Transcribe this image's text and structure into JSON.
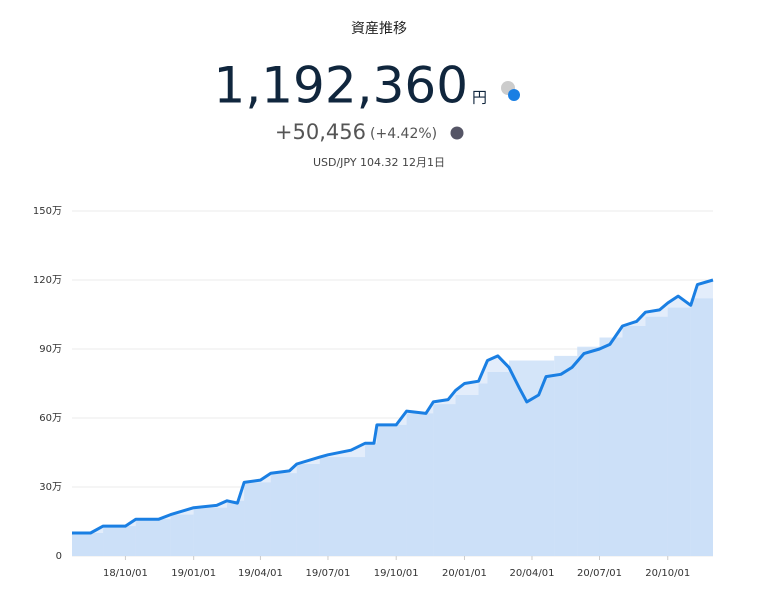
{
  "header": {
    "title": "資産推移",
    "total": "1,192,360",
    "unit": "円",
    "change": "+50,456",
    "change_pct": "(+4.42%)",
    "fx": "USD/JPY 104.32 12月1日"
  },
  "chart_data": {
    "type": "line",
    "x": [
      "18/07/21",
      "18/08/15",
      "18/09/01",
      "18/10/01",
      "18/10/15",
      "18/11/15",
      "18/12/01",
      "19/01/01",
      "19/02/01",
      "19/02/15",
      "19/03/01",
      "19/03/10",
      "19/04/01",
      "19/04/15",
      "19/05/10",
      "19/05/20",
      "19/06/20",
      "19/07/01",
      "19/08/01",
      "19/08/20",
      "19/09/01",
      "19/09/05",
      "19/10/01",
      "19/10/15",
      "19/11/10",
      "19/11/20",
      "19/12/10",
      "19/12/20",
      "20/01/01",
      "20/01/20",
      "20/02/01",
      "20/02/15",
      "20/03/01",
      "20/03/15",
      "20/03/25",
      "20/04/10",
      "20/04/20",
      "20/05/10",
      "20/05/25",
      "20/06/10",
      "20/07/01",
      "20/07/15",
      "20/08/01",
      "20/08/20",
      "20/09/01",
      "20/09/20",
      "20/10/01",
      "20/10/15",
      "20/11/01",
      "20/11/10",
      "20/12/01"
    ],
    "series": [
      {
        "color": "#1a7fe3",
        "values": [
          10,
          10,
          13,
          13,
          16,
          16,
          18,
          21,
          22,
          24,
          23,
          32,
          33,
          36,
          37,
          40,
          43,
          44,
          46,
          49,
          49,
          57,
          57,
          63,
          62,
          67,
          68,
          72,
          75,
          76,
          85,
          87,
          82,
          73,
          67,
          70,
          78,
          79,
          82,
          88,
          90,
          92,
          100,
          102,
          106,
          107,
          110,
          113,
          109,
          118,
          120
        ]
      },
      {
        "color": "#c2daf7",
        "x": [
          "18/07/21",
          "18/09/01",
          "18/10/15",
          "18/12/01",
          "19/01/01",
          "19/02/15",
          "19/03/10",
          "19/04/15",
          "19/05/20",
          "19/06/20",
          "19/08/20",
          "19/09/05",
          "19/10/15",
          "19/11/20",
          "19/12/20",
          "20/01/20",
          "20/02/01",
          "20/03/01",
          "20/05/01",
          "20/06/01",
          "20/07/01",
          "20/08/01",
          "20/09/01",
          "20/10/01",
          "20/11/01",
          "20/12/01"
        ],
        "values": [
          10,
          13,
          16,
          18,
          21,
          24,
          32,
          36,
          40,
          43,
          49,
          57,
          62,
          66,
          70,
          75,
          80,
          85,
          87,
          91,
          95,
          100,
          104,
          108,
          112,
          116
        ]
      }
    ],
    "xlim": [
      "18/07/21",
      "20/12/01"
    ],
    "xticks": [
      "18/10/01",
      "19/01/01",
      "19/04/01",
      "19/07/01",
      "19/10/01",
      "20/01/01",
      "20/04/01",
      "20/07/01",
      "20/10/01"
    ],
    "ylim": [
      0,
      150
    ],
    "yticks": [
      0,
      {
        "value": 30,
        "label": "30万"
      },
      {
        "value": 60,
        "label": "60万"
      },
      {
        "value": 90,
        "label": "90万"
      },
      {
        "value": 120,
        "label": "120万"
      },
      {
        "value": 150,
        "label": "150万"
      }
    ],
    "grid": true,
    "area_color": "#e3edfb"
  }
}
